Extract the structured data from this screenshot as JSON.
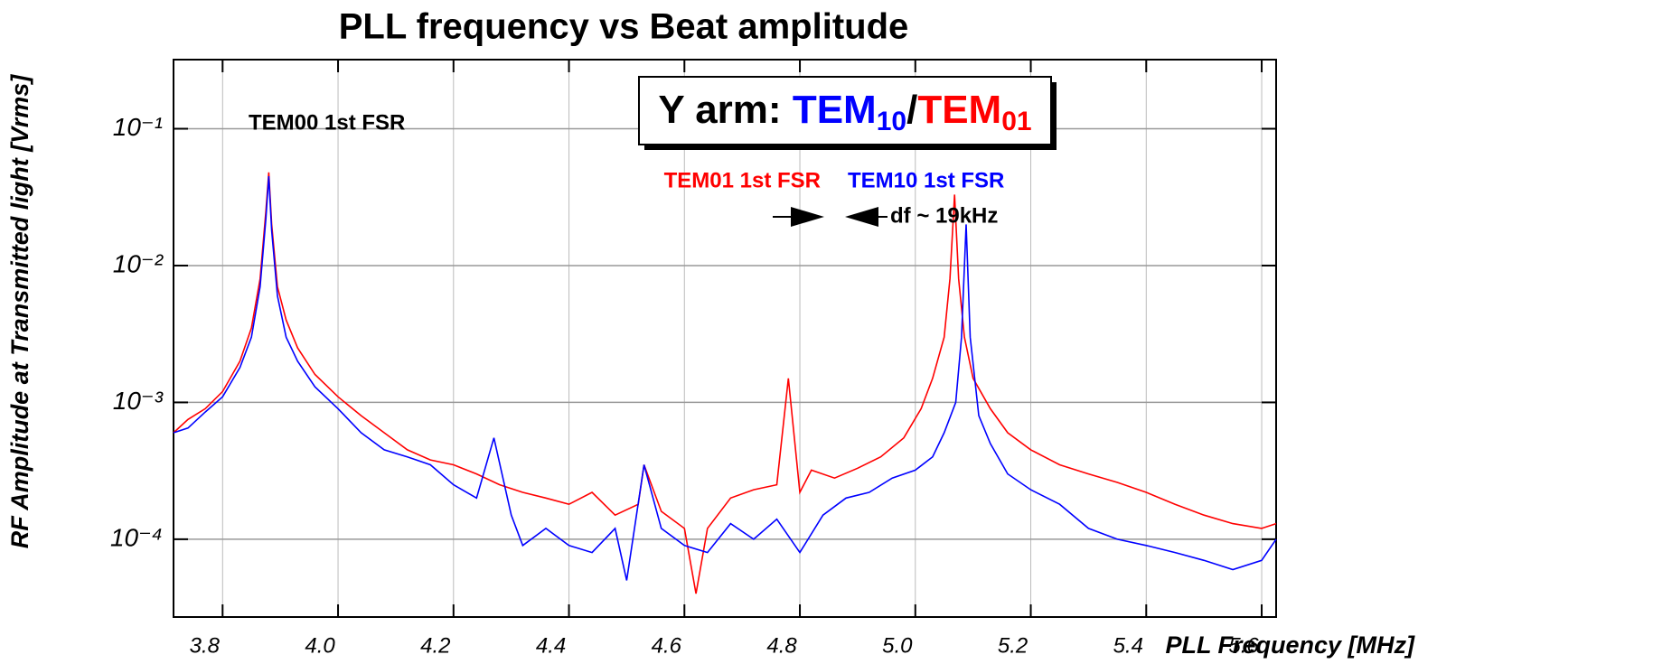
{
  "chart_data": {
    "type": "line",
    "title": "PLL frequency  vs  Beat amplitude",
    "xlabel": "PLL Frequency [MHz]",
    "ylabel": "RF Amplitude at Transmitted light [Vrms]",
    "log_y": true,
    "grid": true,
    "xlim": [
      3.715,
      5.625
    ],
    "ylim": [
      2.7e-05,
      0.32
    ],
    "xticks": [
      3.8,
      {
        "value": 4.0,
        "label": "4.0"
      },
      4.2,
      4.4,
      4.6,
      4.8,
      {
        "value": 5.0,
        "label": "5.0"
      },
      5.2,
      5.4,
      5.6
    ],
    "yticks": [
      {
        "value": 0.1,
        "label": "10⁻¹"
      },
      {
        "value": 0.01,
        "label": "10⁻²"
      },
      {
        "value": 0.001,
        "label": "10⁻³"
      },
      {
        "value": 0.0001,
        "label": "10⁻⁴"
      }
    ],
    "legend": {
      "prefix": "Y arm:",
      "blue_base": "TEM",
      "blue_sub": "10",
      "sep": "/",
      "red_base": "TEM",
      "red_sub": "01"
    },
    "annotations": {
      "tem00": "TEM00 1st FSR",
      "tem01": "TEM01 1st FSR",
      "tem10": "TEM10 1st FSR",
      "df": "df ~ 19kHz"
    },
    "series": [
      {
        "name": "TEM01",
        "color": "#ff0000",
        "x": [
          3.715,
          3.74,
          3.77,
          3.8,
          3.83,
          3.85,
          3.865,
          3.875,
          3.88,
          3.885,
          3.895,
          3.91,
          3.93,
          3.96,
          4.0,
          4.04,
          4.08,
          4.12,
          4.16,
          4.2,
          4.24,
          4.28,
          4.32,
          4.36,
          4.4,
          4.44,
          4.48,
          4.52,
          4.53,
          4.56,
          4.6,
          4.62,
          4.64,
          4.68,
          4.72,
          4.76,
          4.78,
          4.8,
          4.82,
          4.86,
          4.9,
          4.94,
          4.98,
          5.01,
          5.03,
          5.05,
          5.06,
          5.068,
          5.075,
          5.085,
          5.1,
          5.13,
          5.16,
          5.2,
          5.25,
          5.3,
          5.35,
          5.4,
          5.45,
          5.5,
          5.55,
          5.6,
          5.625
        ],
        "values": [
          0.0006,
          0.00075,
          0.0009,
          0.0012,
          0.002,
          0.0035,
          0.008,
          0.025,
          0.048,
          0.02,
          0.007,
          0.004,
          0.0025,
          0.0016,
          0.0011,
          0.0008,
          0.0006,
          0.00045,
          0.00038,
          0.00035,
          0.0003,
          0.00025,
          0.00022,
          0.0002,
          0.00018,
          0.00022,
          0.00015,
          0.00018,
          0.00035,
          0.00016,
          0.00012,
          4e-05,
          0.00012,
          0.0002,
          0.00023,
          0.00025,
          0.0015,
          0.00022,
          0.00032,
          0.00028,
          0.00033,
          0.0004,
          0.00055,
          0.0009,
          0.0015,
          0.003,
          0.008,
          0.033,
          0.008,
          0.003,
          0.0015,
          0.0009,
          0.0006,
          0.00045,
          0.00035,
          0.0003,
          0.00026,
          0.00022,
          0.00018,
          0.00015,
          0.00013,
          0.00012,
          0.00013
        ]
      },
      {
        "name": "TEM10",
        "color": "#0000ff",
        "x": [
          3.715,
          3.74,
          3.77,
          3.8,
          3.83,
          3.85,
          3.865,
          3.875,
          3.88,
          3.885,
          3.895,
          3.91,
          3.93,
          3.96,
          4.0,
          4.04,
          4.08,
          4.12,
          4.16,
          4.2,
          4.24,
          4.27,
          4.3,
          4.32,
          4.36,
          4.4,
          4.44,
          4.48,
          4.5,
          4.53,
          4.56,
          4.6,
          4.64,
          4.68,
          4.72,
          4.76,
          4.8,
          4.84,
          4.88,
          4.92,
          4.96,
          5.0,
          5.03,
          5.05,
          5.07,
          5.08,
          5.088,
          5.095,
          5.11,
          5.13,
          5.16,
          5.2,
          5.25,
          5.3,
          5.35,
          5.4,
          5.45,
          5.5,
          5.55,
          5.6,
          5.625
        ],
        "values": [
          0.0006,
          0.00065,
          0.00085,
          0.0011,
          0.0018,
          0.003,
          0.007,
          0.022,
          0.045,
          0.018,
          0.006,
          0.003,
          0.002,
          0.0013,
          0.0009,
          0.0006,
          0.00045,
          0.0004,
          0.00035,
          0.00025,
          0.0002,
          0.00055,
          0.00015,
          9e-05,
          0.00012,
          9e-05,
          8e-05,
          0.00012,
          5e-05,
          0.00035,
          0.00012,
          9e-05,
          8e-05,
          0.00013,
          0.0001,
          0.00014,
          8e-05,
          0.00015,
          0.0002,
          0.00022,
          0.00028,
          0.00032,
          0.0004,
          0.0006,
          0.001,
          0.003,
          0.02,
          0.003,
          0.0008,
          0.0005,
          0.0003,
          0.00023,
          0.00018,
          0.00012,
          0.0001,
          9e-05,
          8e-05,
          7e-05,
          6e-05,
          7e-05,
          0.0001
        ]
      }
    ]
  }
}
